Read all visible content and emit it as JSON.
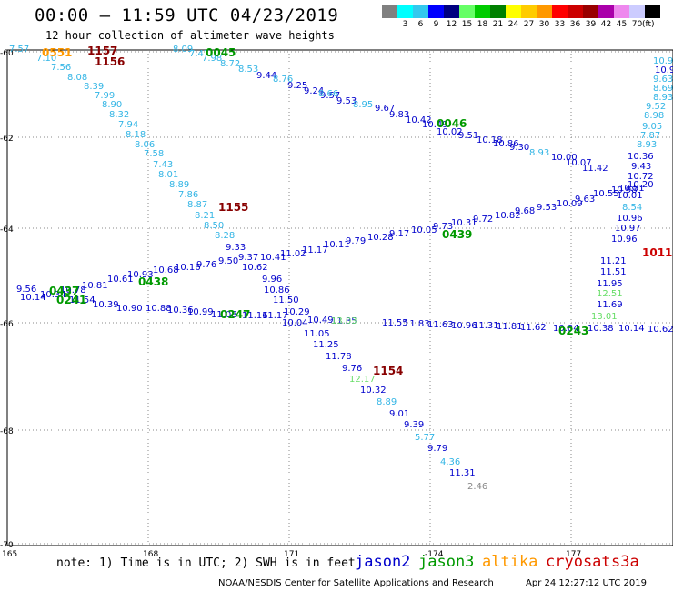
{
  "header": {
    "title": "00:00 — 11:59 UTC 04/23/2019",
    "subtitle": "12 hour collection of altimeter wave heights"
  },
  "legend": {
    "unit": "(ft)",
    "items": [
      {
        "label": "",
        "color": "#808080"
      },
      {
        "label": "3",
        "color": "#00ffff"
      },
      {
        "label": "6",
        "color": "#33c9ee"
      },
      {
        "label": "9",
        "color": "#0000ff"
      },
      {
        "label": "12",
        "color": "#000080"
      },
      {
        "label": "15",
        "color": "#66ff66"
      },
      {
        "label": "18",
        "color": "#00cc00"
      },
      {
        "label": "21",
        "color": "#008000"
      },
      {
        "label": "24",
        "color": "#ffff00"
      },
      {
        "label": "27",
        "color": "#ffcc00"
      },
      {
        "label": "30",
        "color": "#ff9900"
      },
      {
        "label": "33",
        "color": "#ff0000"
      },
      {
        "label": "36",
        "color": "#cc0000"
      },
      {
        "label": "39",
        "color": "#990000"
      },
      {
        "label": "42",
        "color": "#aa00aa"
      },
      {
        "label": "45",
        "color": "#ee88ee"
      },
      {
        "label": "70",
        "color": "#ccccff"
      },
      {
        "label": "",
        "color": "#000000"
      }
    ]
  },
  "map": {
    "lat_ticks": [
      "-60",
      "-62",
      "-64",
      "-66",
      "-68",
      "-70"
    ],
    "lon_ticks": [
      "165",
      "168",
      "171",
      "-174",
      "177"
    ],
    "tracks": [
      {
        "color_role": "jason2",
        "points": [
          {
            "v": "9.44"
          },
          {
            "v": "9.25"
          },
          {
            "v": "9.24"
          },
          {
            "v": "9.57"
          },
          {
            "v": "9.53"
          },
          {
            "v": "9.67"
          },
          {
            "v": "9.83"
          },
          {
            "v": "10.42"
          },
          {
            "v": "10.49"
          },
          {
            "v": "10.02"
          },
          {
            "v": "9.51"
          },
          {
            "v": "10.18"
          },
          {
            "v": "10.86"
          },
          {
            "v": "9.30"
          },
          {
            "v": "10.00"
          },
          {
            "v": "10.07"
          },
          {
            "v": "11.42"
          }
        ]
      },
      {
        "color_role": "jason2",
        "points": [
          {
            "v": "9.33"
          },
          {
            "v": "9.37"
          },
          {
            "v": "10.41"
          },
          {
            "v": "11.02"
          },
          {
            "v": "11.17"
          },
          {
            "v": "10.11"
          },
          {
            "v": "9.79"
          },
          {
            "v": "10.28"
          },
          {
            "v": "9.17"
          },
          {
            "v": "10.05"
          },
          {
            "v": "9.73"
          },
          {
            "v": "10.31"
          },
          {
            "v": "9.72"
          },
          {
            "v": "10.82"
          },
          {
            "v": "9.68"
          },
          {
            "v": "9.53"
          },
          {
            "v": "10.09"
          },
          {
            "v": "9.63"
          },
          {
            "v": "10.55"
          },
          {
            "v": "10.98"
          },
          {
            "v": "10.20"
          }
        ]
      },
      {
        "color_role": "jason2",
        "points": [
          {
            "v": "9.56"
          },
          {
            "v": "10.14"
          },
          {
            "v": "10.34"
          },
          {
            "v": "10.78"
          },
          {
            "v": "10.81"
          },
          {
            "v": "11.54"
          },
          {
            "v": "10.39"
          },
          {
            "v": "10.90"
          },
          {
            "v": "10.61"
          },
          {
            "v": "10.93"
          },
          {
            "v": "10.68"
          },
          {
            "v": "10.16"
          },
          {
            "v": "9.76"
          },
          {
            "v": "9.50"
          },
          {
            "v": "10.62"
          },
          {
            "v": "9.96"
          },
          {
            "v": "10.86"
          },
          {
            "v": "11.50"
          },
          {
            "v": "10.29"
          }
        ]
      },
      {
        "color_role": "jason2",
        "points": [
          {
            "v": "10.88"
          },
          {
            "v": "10.36"
          },
          {
            "v": "10.99"
          },
          {
            "v": "11.08"
          },
          {
            "v": "11.16"
          },
          {
            "v": "11.17"
          },
          {
            "v": "10.04"
          },
          {
            "v": "10.49"
          },
          {
            "v": "11.35"
          },
          {
            "v": "11.55"
          },
          {
            "v": "11.83"
          },
          {
            "v": "11.63"
          },
          {
            "v": "10.96"
          },
          {
            "v": "11.31"
          },
          {
            "v": "11.81"
          },
          {
            "v": "11.62"
          },
          {
            "v": "10.84"
          },
          {
            "v": "10.38"
          },
          {
            "v": "10.14"
          },
          {
            "v": "10.62"
          }
        ]
      },
      {
        "color_role": "jason2",
        "points": [
          {
            "v": "11.05"
          },
          {
            "v": "11.25"
          },
          {
            "v": "11.78"
          },
          {
            "v": "9.76"
          },
          {
            "v": "10.32"
          },
          {
            "v": "9.01"
          },
          {
            "v": "9.39"
          },
          {
            "v": "9.79"
          },
          {
            "v": "11.31"
          }
        ]
      },
      {
        "color_role": "jason2",
        "points": [
          {
            "v": "10.90"
          },
          {
            "v": "10.36"
          },
          {
            "v": "9.43"
          },
          {
            "v": "10.72"
          },
          {
            "v": "10.51"
          },
          {
            "v": "10.01"
          },
          {
            "v": "10.96"
          },
          {
            "v": "10.97"
          },
          {
            "v": "10.96"
          },
          {
            "v": "11.21"
          },
          {
            "v": "11.51"
          },
          {
            "v": "11.95"
          },
          {
            "v": "11.69"
          }
        ]
      },
      {
        "color_role": "light",
        "points": [
          {
            "v": "7.57"
          },
          {
            "v": "7.10"
          },
          {
            "v": "7.56"
          },
          {
            "v": "8.08"
          },
          {
            "v": "8.39"
          },
          {
            "v": "7.99"
          },
          {
            "v": "8.90"
          },
          {
            "v": "8.32"
          },
          {
            "v": "7.94"
          },
          {
            "v": "8.18"
          },
          {
            "v": "8.06"
          },
          {
            "v": "7.58"
          },
          {
            "v": "7.43"
          },
          {
            "v": "8.01"
          },
          {
            "v": "8.89"
          },
          {
            "v": "7.86"
          },
          {
            "v": "8.87"
          },
          {
            "v": "8.21"
          },
          {
            "v": "8.50"
          },
          {
            "v": "8.28"
          }
        ]
      },
      {
        "color_role": "light",
        "points": [
          {
            "v": "8.09"
          },
          {
            "v": "7.47"
          },
          {
            "v": "7.98"
          },
          {
            "v": "8.72"
          },
          {
            "v": "8.53"
          },
          {
            "v": "8.76"
          },
          {
            "v": "8.66"
          },
          {
            "v": "8.95"
          },
          {
            "v": "8.93"
          }
        ]
      },
      {
        "color_role": "light",
        "points": [
          {
            "v": "10.9"
          },
          {
            "v": "9.63"
          },
          {
            "v": "8.69"
          },
          {
            "v": "8.93"
          },
          {
            "v": "9.52"
          },
          {
            "v": "8.98"
          },
          {
            "v": "9.05"
          },
          {
            "v": "7.87"
          },
          {
            "v": "8.93"
          },
          {
            "v": "8.54"
          },
          {
            "v": "8.89"
          },
          {
            "v": "5.77"
          },
          {
            "v": "4.36"
          }
        ]
      },
      {
        "color_role": "green",
        "points": [
          {
            "v": "12.51"
          },
          {
            "v": "13.01"
          },
          {
            "v": "12.17"
          },
          {
            "v": "13.03"
          }
        ]
      },
      {
        "color_role": "gray",
        "points": [
          {
            "v": "2.46"
          }
        ]
      }
    ],
    "time_labels": [
      {
        "text": "0551",
        "sat": "altika"
      },
      {
        "text": "1157",
        "sat": "cryosat"
      },
      {
        "text": "1156",
        "sat": "cryosat"
      },
      {
        "text": "0045",
        "sat": "jason3"
      },
      {
        "text": "0046",
        "sat": "jason3"
      },
      {
        "text": "1155",
        "sat": "cryosat"
      },
      {
        "text": "0439",
        "sat": "jason3"
      },
      {
        "text": "0438",
        "sat": "jason3"
      },
      {
        "text": "0437",
        "sat": "jason3"
      },
      {
        "text": "0241",
        "sat": "jason3"
      },
      {
        "text": "0247",
        "sat": "jason3"
      },
      {
        "text": "1154",
        "sat": "cryosat"
      },
      {
        "text": "0243",
        "sat": "jason3"
      },
      {
        "text": "1011",
        "sat": "s3a"
      }
    ]
  },
  "footer": {
    "note": "note: 1) Time is in UTC; 2) SWH is in feet",
    "satellites": [
      {
        "name": "jason2",
        "color": "#0000cc"
      },
      {
        "name": "jason3",
        "color": "#009900"
      },
      {
        "name": "altika",
        "color": "#ff9900"
      },
      {
        "name": "cryosat",
        "color": "#cc0000"
      },
      {
        "name": "s3a",
        "color": "#cc0000"
      }
    ],
    "credit": "NOAA/NESDIS Center for Satellite Applications and Research",
    "timestamp": "Apr 24 12:27:12 UTC 2019"
  }
}
